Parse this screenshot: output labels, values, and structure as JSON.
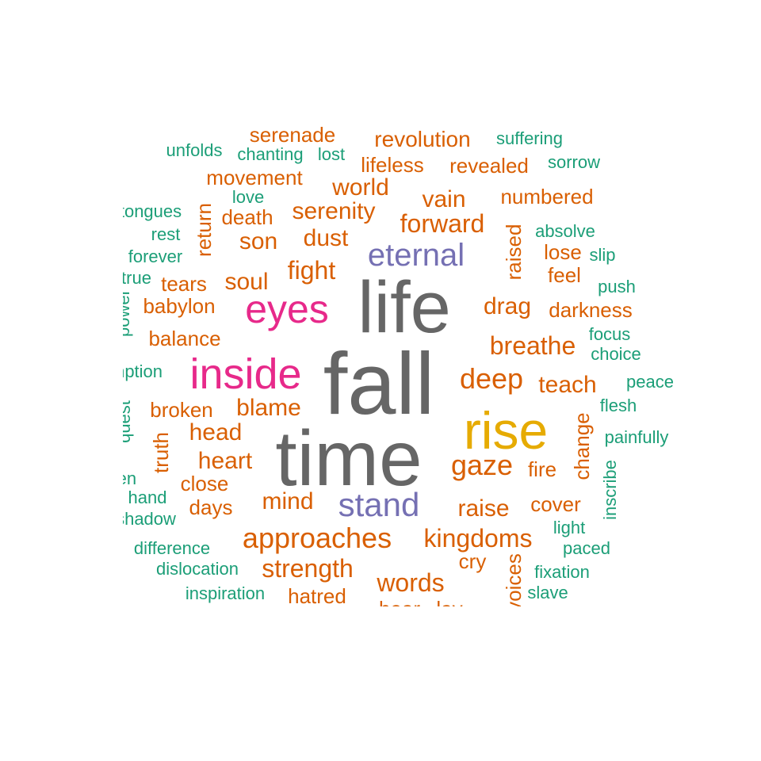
{
  "colors": {
    "teal": "#1b9e77",
    "orange": "#d95f02",
    "purple": "#7570b3",
    "magenta": "#e7298a",
    "gold": "#e6ab02",
    "gray": "#666666"
  },
  "words": [
    {
      "text": "fall",
      "color": "gray"
    },
    {
      "text": "time",
      "color": "gray"
    },
    {
      "text": "life",
      "color": "gray"
    },
    {
      "text": "rise",
      "color": "gold"
    },
    {
      "text": "inside",
      "color": "magenta"
    },
    {
      "text": "eyes",
      "color": "magenta"
    },
    {
      "text": "eternal",
      "color": "purple"
    },
    {
      "text": "stand",
      "color": "purple"
    },
    {
      "text": "approaches",
      "color": "orange"
    },
    {
      "text": "kingdoms",
      "color": "orange"
    },
    {
      "text": "gaze",
      "color": "orange"
    },
    {
      "text": "deep",
      "color": "orange"
    },
    {
      "text": "strength",
      "color": "orange"
    },
    {
      "text": "words",
      "color": "orange"
    },
    {
      "text": "breathe",
      "color": "orange"
    },
    {
      "text": "forward",
      "color": "orange"
    },
    {
      "text": "serenity",
      "color": "orange"
    },
    {
      "text": "world",
      "color": "orange"
    },
    {
      "text": "vain",
      "color": "orange"
    },
    {
      "text": "drag",
      "color": "orange"
    },
    {
      "text": "teach",
      "color": "orange"
    },
    {
      "text": "raise",
      "color": "orange"
    },
    {
      "text": "head",
      "color": "orange"
    },
    {
      "text": "heart",
      "color": "orange"
    },
    {
      "text": "blame",
      "color": "orange"
    },
    {
      "text": "mind",
      "color": "orange"
    },
    {
      "text": "soul",
      "color": "orange"
    },
    {
      "text": "fight",
      "color": "orange"
    },
    {
      "text": "dust",
      "color": "orange"
    },
    {
      "text": "son",
      "color": "orange"
    },
    {
      "text": "revolution",
      "color": "orange"
    },
    {
      "text": "serenade",
      "color": "orange"
    },
    {
      "text": "movement",
      "color": "orange"
    },
    {
      "text": "lifeless",
      "color": "orange"
    },
    {
      "text": "revealed",
      "color": "orange"
    },
    {
      "text": "numbered",
      "color": "orange"
    },
    {
      "text": "darkness",
      "color": "orange"
    },
    {
      "text": "broken",
      "color": "orange"
    },
    {
      "text": "balance",
      "color": "orange"
    },
    {
      "text": "babylon",
      "color": "orange"
    },
    {
      "text": "tears",
      "color": "orange"
    },
    {
      "text": "death",
      "color": "orange"
    },
    {
      "text": "close",
      "color": "orange"
    },
    {
      "text": "days",
      "color": "orange"
    },
    {
      "text": "hatred",
      "color": "orange"
    },
    {
      "text": "cover",
      "color": "orange"
    },
    {
      "text": "fire",
      "color": "orange"
    },
    {
      "text": "cry",
      "color": "orange"
    },
    {
      "text": "lose",
      "color": "orange"
    },
    {
      "text": "feel",
      "color": "orange"
    },
    {
      "text": "raised",
      "color": "orange"
    },
    {
      "text": "return",
      "color": "orange"
    },
    {
      "text": "truth",
      "color": "orange"
    },
    {
      "text": "change",
      "color": "orange"
    },
    {
      "text": "bear",
      "color": "orange"
    },
    {
      "text": "lay",
      "color": "orange"
    },
    {
      "text": "voices",
      "color": "orange"
    },
    {
      "text": "suffering",
      "color": "teal"
    },
    {
      "text": "unfolds",
      "color": "teal"
    },
    {
      "text": "chanting",
      "color": "teal"
    },
    {
      "text": "lost",
      "color": "teal"
    },
    {
      "text": "sorrow",
      "color": "teal"
    },
    {
      "text": "love",
      "color": "teal"
    },
    {
      "text": "tongues",
      "color": "teal"
    },
    {
      "text": "rest",
      "color": "teal"
    },
    {
      "text": "absolve",
      "color": "teal"
    },
    {
      "text": "forever",
      "color": "teal"
    },
    {
      "text": "slip",
      "color": "teal"
    },
    {
      "text": "true",
      "color": "teal"
    },
    {
      "text": "push",
      "color": "teal"
    },
    {
      "text": "power",
      "color": "teal"
    },
    {
      "text": "focus",
      "color": "teal"
    },
    {
      "text": "choice",
      "color": "teal"
    },
    {
      "text": "redemption",
      "color": "teal"
    },
    {
      "text": "peace",
      "color": "teal"
    },
    {
      "text": "flesh",
      "color": "teal"
    },
    {
      "text": "quest",
      "color": "teal"
    },
    {
      "text": "painfully",
      "color": "teal"
    },
    {
      "text": "heaven",
      "color": "teal"
    },
    {
      "text": "hand",
      "color": "teal"
    },
    {
      "text": "shadow",
      "color": "teal"
    },
    {
      "text": "inscribe",
      "color": "teal"
    },
    {
      "text": "light",
      "color": "teal"
    },
    {
      "text": "difference",
      "color": "teal"
    },
    {
      "text": "paced",
      "color": "teal"
    },
    {
      "text": "dislocation",
      "color": "teal"
    },
    {
      "text": "fixation",
      "color": "teal"
    },
    {
      "text": "inspiration",
      "color": "teal"
    },
    {
      "text": "slave",
      "color": "teal"
    }
  ]
}
